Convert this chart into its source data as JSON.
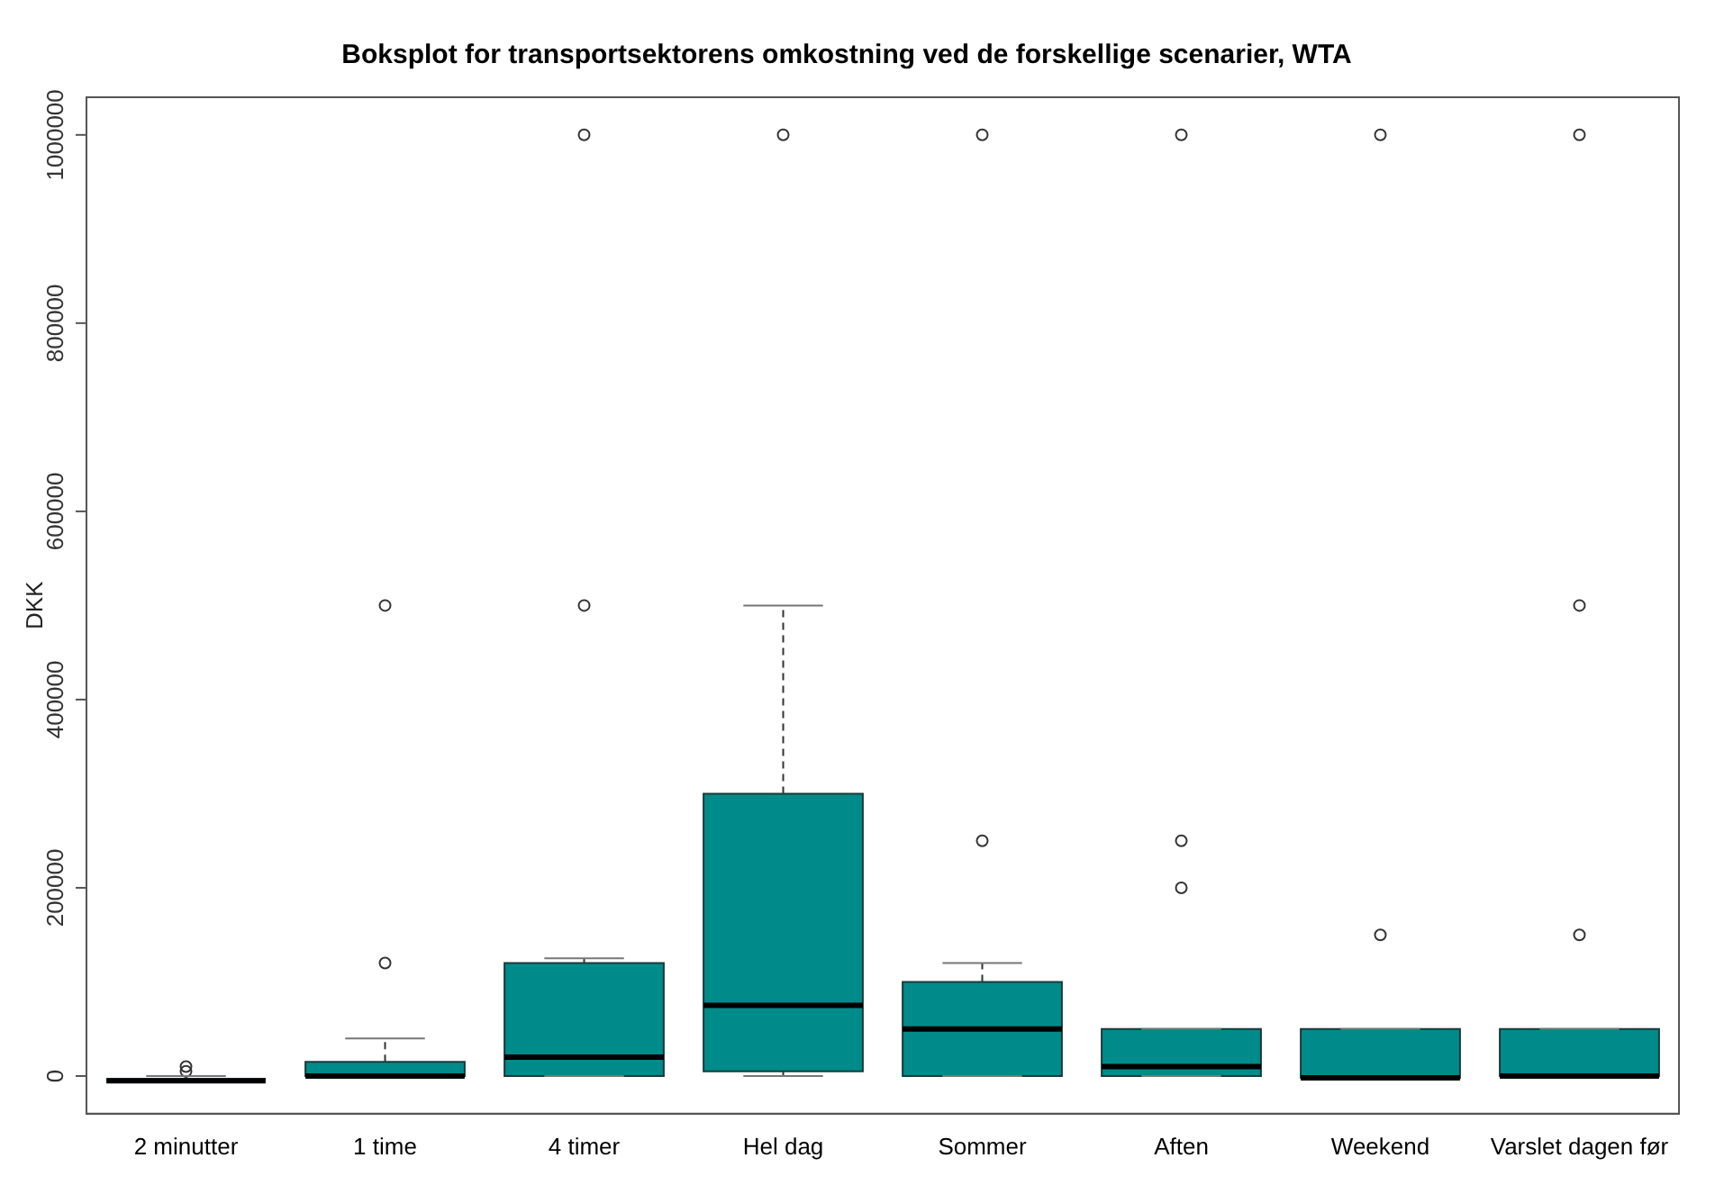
{
  "chart_data": {
    "type": "box",
    "title": "Boksplot for transportsektorens omkostning ved de forskellige scenarier, WTA",
    "ylabel": "DKK",
    "categories": [
      "2 minutter",
      "1 time",
      "4 timer",
      "Hel dag",
      "Sommer",
      "Aften",
      "Weekend",
      "Varslet dagen før"
    ],
    "color": "#008b8b",
    "ylim": [
      -40000,
      1040000
    ],
    "yticks": [
      0,
      200000,
      400000,
      600000,
      800000,
      1000000
    ],
    "grid": false,
    "boxes": [
      {
        "low": -5000,
        "q1": -5000,
        "median": -5000,
        "q3": -2000,
        "high": 0,
        "outliers": [
          10000,
          5000
        ]
      },
      {
        "low": 0,
        "q1": 0,
        "median": 0,
        "q3": 15000,
        "high": 40000,
        "outliers": [
          120000,
          500000
        ]
      },
      {
        "low": 0,
        "q1": 0,
        "median": 20000,
        "q3": 120000,
        "high": 125000,
        "outliers": [
          500000,
          1000000
        ]
      },
      {
        "low": 0,
        "q1": 5000,
        "median": 75000,
        "q3": 300000,
        "high": 500000,
        "outliers": [
          1000000
        ]
      },
      {
        "low": 0,
        "q1": 0,
        "median": 50000,
        "q3": 100000,
        "high": 120000,
        "outliers": [
          250000,
          1000000
        ]
      },
      {
        "low": 0,
        "q1": 0,
        "median": 10000,
        "q3": 50000,
        "high": 50000,
        "outliers": [
          200000,
          250000,
          1000000
        ]
      },
      {
        "low": -2000,
        "q1": -2000,
        "median": -2000,
        "q3": 50000,
        "high": 50000,
        "outliers": [
          150000,
          1000000
        ]
      },
      {
        "low": 0,
        "q1": 0,
        "median": 0,
        "q3": 50000,
        "high": 50000,
        "outliers": [
          150000,
          500000,
          1000000
        ]
      }
    ]
  }
}
